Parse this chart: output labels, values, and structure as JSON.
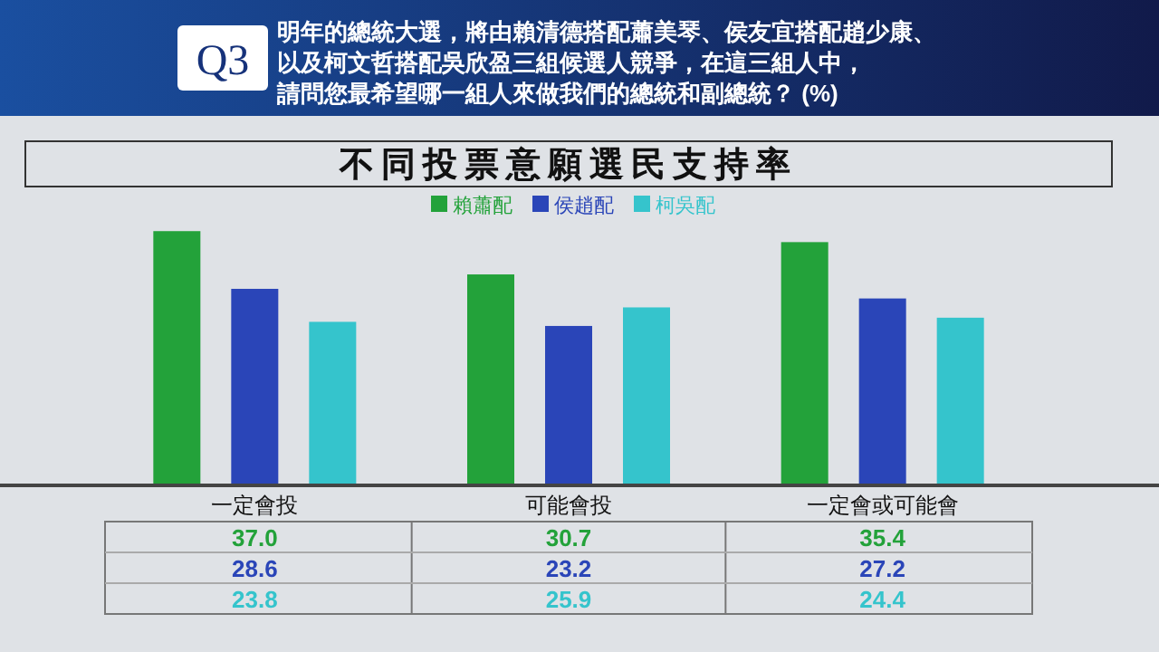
{
  "chart_data": {
    "type": "bar",
    "title": "不同投票意願選民支持率",
    "subtitle": "明年的總統大選，將由賴清德搭配蕭美琴、侯友宜搭配趙少康、以及柯文哲搭配吳欣盈三組候選人競爭，在這三組人中，請問您最希望哪一組人來做我們的總統和副總統？ (%)",
    "annotations": [
      "Q3"
    ],
    "categories": [
      "一定會投",
      "可能會投",
      "一定會或可能會"
    ],
    "series": [
      {
        "name": "賴蕭配",
        "color": "#23a23a",
        "values": [
          37.0,
          30.7,
          35.4
        ],
        "value_labels": [
          "37.0",
          "30.7",
          "35.4"
        ]
      },
      {
        "name": "侯趙配",
        "color": "#2a45b8",
        "values": [
          28.6,
          23.2,
          27.2
        ],
        "value_labels": [
          "28.6",
          "23.2",
          "27.2"
        ]
      },
      {
        "name": "柯吳配",
        "color": "#35c4cc",
        "values": [
          23.8,
          25.9,
          24.4
        ],
        "value_labels": [
          "23.8",
          "25.9",
          "24.4"
        ]
      }
    ],
    "legend": "top"
  }
}
